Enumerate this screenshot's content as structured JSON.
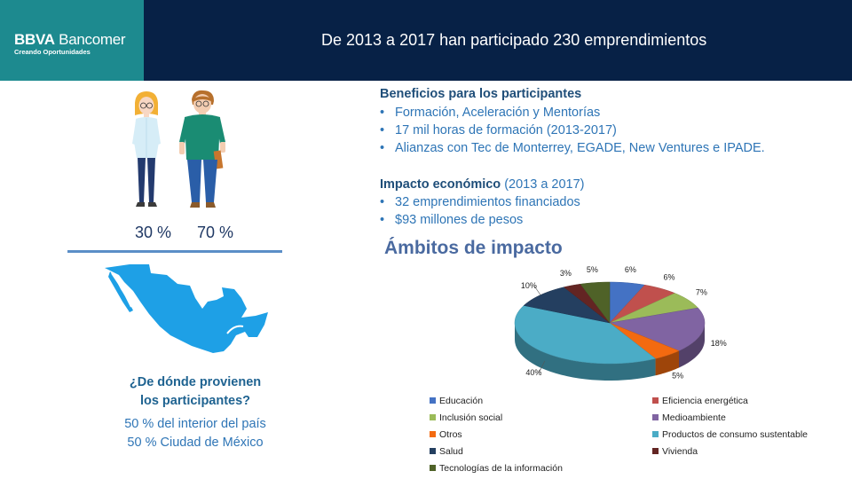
{
  "header": {
    "logo_brand": "BBVA",
    "logo_name": "Bancomer",
    "logo_tagline": "Creando Oportunidades",
    "title": "De 2013 a 2017 han participado 230 emprendimientos"
  },
  "participants": {
    "women_pct": "30 %",
    "men_pct": "70 %"
  },
  "origin": {
    "question_line1": "¿De dónde provienen",
    "question_line2": "los participantes?",
    "line1": "50 % del interior del país",
    "line2": "50 % Ciudad de México"
  },
  "benefits": {
    "title": "Beneficios para los participantes",
    "items": [
      "Formación, Aceleración y Mentorías",
      "17 mil horas de formación (2013-2017)",
      "Alianzas con Tec de Monterrey, EGADE, New Ventures e IPADE."
    ]
  },
  "impact": {
    "title_bold": "Impacto económico",
    "title_rest": " (2013 a 2017)",
    "items": [
      "32 emprendimientos financiados",
      "$93 millones de pesos"
    ]
  },
  "chart_data": {
    "type": "pie",
    "title": "Ámbitos de impacto",
    "value_suffix": "%",
    "categories": [
      "Educación",
      "Eficiencia energética",
      "Inclusión social",
      "Medioambiente",
      "Otros",
      "Productos de consumo sustentable",
      "Salud",
      "Vivienda",
      "Tecnologías de la información"
    ],
    "values": [
      6,
      6,
      7,
      18,
      5,
      40,
      10,
      3,
      5
    ],
    "colors": [
      "#4472c4",
      "#c0504d",
      "#9bbb59",
      "#8064a2",
      "#f36a10",
      "#4bacc6",
      "#243f60",
      "#632523",
      "#4f6228"
    ],
    "legend_placement": "bottom"
  }
}
